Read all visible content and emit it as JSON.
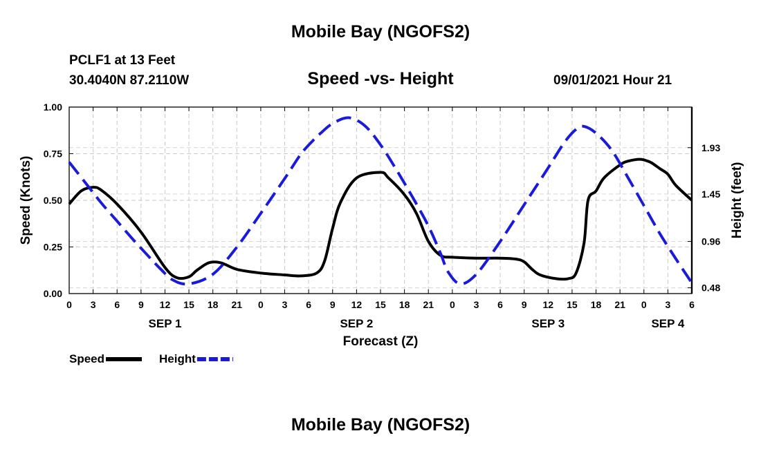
{
  "header": {
    "title": "Mobile Bay (NGOFS2)",
    "station": "PCLF1 at 13 Feet",
    "coordinates": "30.4040N  87.2110W",
    "subtitle": "Speed -vs- Height",
    "datetime": "09/01/2021 Hour 21"
  },
  "footer": {
    "title": "Mobile Bay (NGOFS2)"
  },
  "chart_data": {
    "type": "line",
    "title": "Speed -vs- Height",
    "xlabel": "Forecast (Z)",
    "ylabel": "Speed (Knots)",
    "y2label": "Height (feet)",
    "xlim": [
      0,
      78
    ],
    "ylim": [
      0,
      1.0
    ],
    "y2lim": [
      0.42,
      2.35
    ],
    "x_ticks": [
      0,
      3,
      6,
      9,
      12,
      15,
      18,
      21,
      24,
      27,
      30,
      33,
      36,
      39,
      42,
      45,
      48,
      51,
      54,
      57,
      60,
      63,
      66,
      69,
      72,
      75,
      78
    ],
    "x_tick_labels": [
      "0",
      "3",
      "6",
      "9",
      "12",
      "15",
      "18",
      "21",
      "0",
      "3",
      "6",
      "9",
      "12",
      "15",
      "18",
      "21",
      "0",
      "3",
      "6",
      "9",
      "12",
      "15",
      "18",
      "21",
      "0",
      "3",
      "6"
    ],
    "day_labels": [
      {
        "x": 12,
        "label": "SEP 1"
      },
      {
        "x": 36,
        "label": "SEP 2"
      },
      {
        "x": 60,
        "label": "SEP 3"
      },
      {
        "x": 75,
        "label": "SEP 4"
      }
    ],
    "y_ticks": [
      0,
      0.25,
      0.5,
      0.75,
      1.0
    ],
    "y_tick_labels": [
      "0.00",
      "0.25",
      "0.50",
      "0.75",
      "1.00"
    ],
    "y2_ticks": [
      0.48,
      0.96,
      1.45,
      1.93
    ],
    "y2_tick_labels": [
      "0.48",
      "0.96",
      "1.45",
      "1.93"
    ],
    "grid": true,
    "legend_position": "bottom-left",
    "series": [
      {
        "name": "Speed",
        "legend": "Speed",
        "axis": "left",
        "color": "#000000",
        "dash": "solid",
        "x": [
          0,
          1.5,
          3,
          4,
          6,
          9,
          12,
          13.5,
          15,
          16,
          17.5,
          19,
          21,
          24,
          27,
          29,
          31,
          32,
          33,
          34,
          36,
          39,
          40,
          42,
          43.5,
          45,
          46.5,
          48,
          51,
          54,
          56,
          57,
          58,
          59,
          61,
          62.5,
          63.5,
          64.5,
          65,
          66,
          67,
          69,
          70,
          71.5,
          72.5,
          73,
          74,
          75,
          76,
          78
        ],
        "y": [
          0.48,
          0.55,
          0.57,
          0.555,
          0.48,
          0.33,
          0.14,
          0.085,
          0.09,
          0.125,
          0.165,
          0.165,
          0.13,
          0.11,
          0.1,
          0.095,
          0.11,
          0.175,
          0.35,
          0.49,
          0.62,
          0.65,
          0.62,
          0.53,
          0.43,
          0.28,
          0.205,
          0.195,
          0.19,
          0.19,
          0.185,
          0.17,
          0.13,
          0.1,
          0.08,
          0.08,
          0.11,
          0.27,
          0.5,
          0.55,
          0.62,
          0.69,
          0.71,
          0.72,
          0.71,
          0.7,
          0.67,
          0.64,
          0.58,
          0.5
        ]
      },
      {
        "name": "Height",
        "legend": "Height",
        "axis": "right",
        "color": "#1a1adc",
        "dash": "dashed",
        "x": [
          0,
          2,
          4,
          6,
          8,
          10,
          11.5,
          13,
          15,
          18,
          21,
          24,
          27,
          29,
          30.5,
          31.5,
          33,
          35,
          37,
          39,
          41,
          43,
          45,
          46.5,
          47.5,
          49,
          51,
          54,
          57,
          60,
          62,
          63.5,
          64.5,
          66,
          68,
          70,
          72,
          74,
          76,
          78
        ],
        "y": [
          1.78,
          1.57,
          1.36,
          1.17,
          0.98,
          0.8,
          0.67,
          0.56,
          0.52,
          0.62,
          0.9,
          1.25,
          1.61,
          1.86,
          2.0,
          2.08,
          2.18,
          2.24,
          2.16,
          1.96,
          1.7,
          1.42,
          1.12,
          0.84,
          0.64,
          0.52,
          0.62,
          0.96,
          1.34,
          1.72,
          1.98,
          2.12,
          2.15,
          2.08,
          1.9,
          1.62,
          1.33,
          1.04,
          0.78,
          0.53
        ]
      }
    ]
  }
}
